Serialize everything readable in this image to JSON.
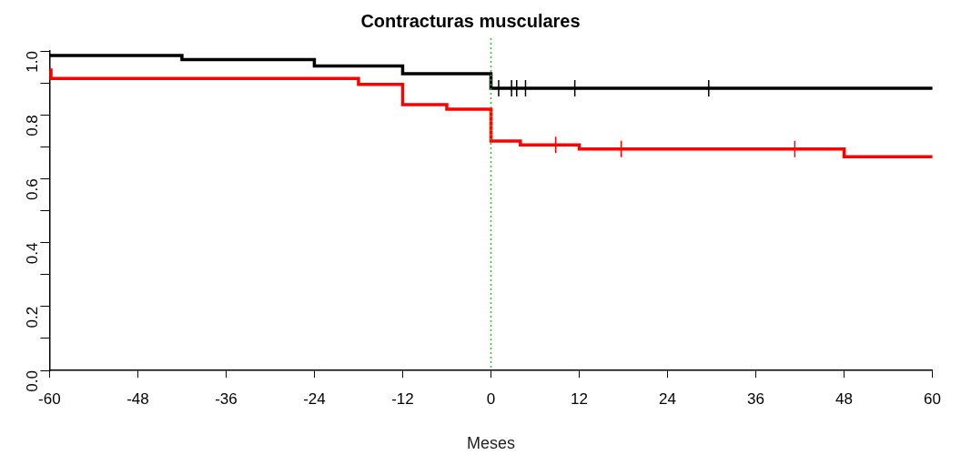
{
  "chart_data": {
    "type": "step",
    "title": "Contracturas musculares",
    "xlabel": "Meses",
    "xlim": [
      -60,
      60
    ],
    "xticks": [
      -60,
      -48,
      -36,
      -24,
      -12,
      0,
      12,
      24,
      36,
      48,
      60
    ],
    "ylim": [
      0,
      1
    ],
    "yticks": [
      {
        "value": 0,
        "label": "0.0"
      },
      {
        "value": 0.1,
        "label": null
      },
      0.2,
      {
        "value": 0.3,
        "label": null
      },
      0.4,
      {
        "value": 0.5,
        "label": null
      },
      0.6,
      {
        "value": 0.7,
        "label": null
      },
      0.8,
      {
        "value": 0.9,
        "label": null
      },
      {
        "value": 1,
        "label": "1.0"
      }
    ],
    "grid": false,
    "legend": false,
    "series": [
      {
        "color": "#000000",
        "x": [
          -60,
          -42,
          -24,
          -12,
          0,
          60
        ],
        "values": [
          0.986,
          0.973,
          0.953,
          0.929,
          0.883,
          0.883
        ]
      },
      {
        "color": "#ff0000",
        "x": [
          -60,
          -59.8,
          -18,
          -12,
          -6,
          0,
          4,
          12,
          48,
          60
        ],
        "values": [
          0.94,
          0.914,
          0.895,
          0.832,
          0.818,
          0.718,
          0.706,
          0.693,
          0.669,
          0.669
        ]
      },
      {
        "type": "scatter",
        "color": "#000000",
        "marker": "cross",
        "x": [
          1.05,
          2.8,
          3.5,
          4.7,
          11.4,
          29.6
        ],
        "values": [
          0.883,
          0.883,
          0.883,
          0.883,
          0.883,
          0.883
        ]
      },
      {
        "type": "scatter",
        "color": "#ff0000",
        "marker": "cross",
        "x": [
          8.8,
          17.7,
          41.3
        ],
        "values": [
          0.706,
          0.693,
          0.693
        ]
      }
    ],
    "ref_lines": [
      {
        "axis": "x",
        "value": 0,
        "color": "#00dd00",
        "line_style": "dotted"
      }
    ]
  }
}
